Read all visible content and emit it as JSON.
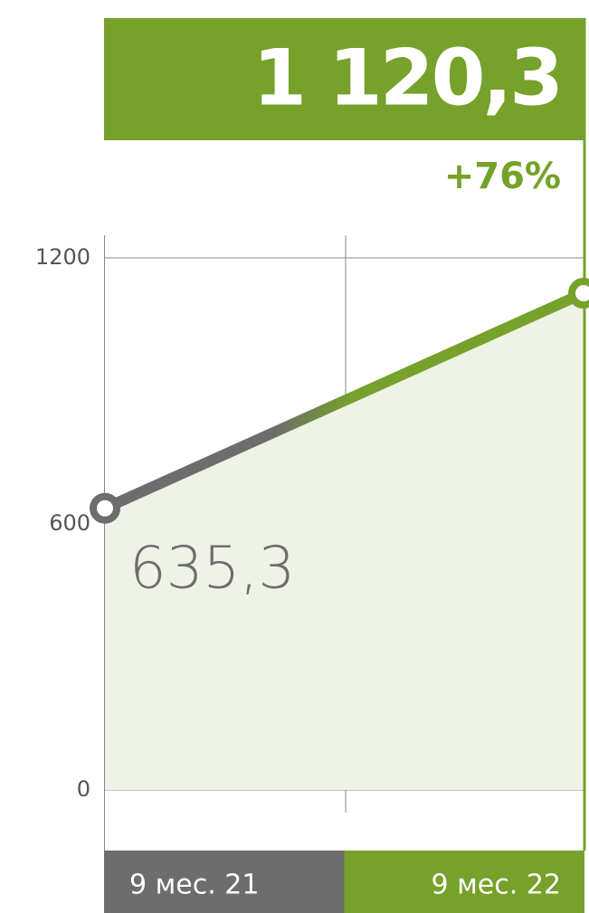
{
  "chart_data": {
    "type": "line",
    "categories": [
      "9 мес. 21",
      "9 мес. 22"
    ],
    "values": [
      635.3,
      1120.3
    ],
    "value_labels": [
      "635,3",
      "1 120,3"
    ],
    "colors": [
      "#6d6d6d",
      "#76a12a"
    ],
    "annotation": "+76%",
    "ylim": [
      0,
      1200
    ],
    "yticks": [
      0,
      600,
      1200
    ],
    "grid": true
  }
}
